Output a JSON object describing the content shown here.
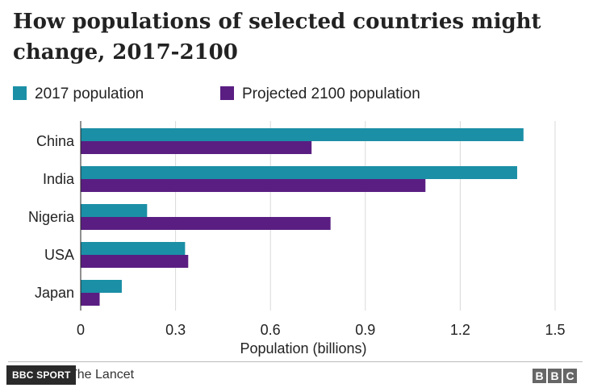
{
  "chart_data": {
    "type": "bar",
    "orientation": "horizontal",
    "title": "How populations of selected countries might change, 2017-2100",
    "categories": [
      "China",
      "India",
      "Nigeria",
      "USA",
      "Japan"
    ],
    "series": [
      {
        "name": "2017 population",
        "color": "#1b8fa6",
        "values": [
          1.4,
          1.38,
          0.21,
          0.33,
          0.13
        ]
      },
      {
        "name": "Projected 2100 population",
        "color": "#5a1e82",
        "values": [
          0.73,
          1.09,
          0.79,
          0.34,
          0.06
        ]
      }
    ],
    "xlabel": "Population (billions)",
    "ylabel": "",
    "xlim": [
      0,
      1.5
    ],
    "xticks": [
      "0",
      "0.3",
      "0.6",
      "0.9",
      "1.2",
      "1.5"
    ],
    "grid": true,
    "legend": "top-left"
  },
  "footer": {
    "source": "The Lancet",
    "badge": "BBC SPORT",
    "logo_letters": [
      "B",
      "B",
      "C"
    ]
  }
}
